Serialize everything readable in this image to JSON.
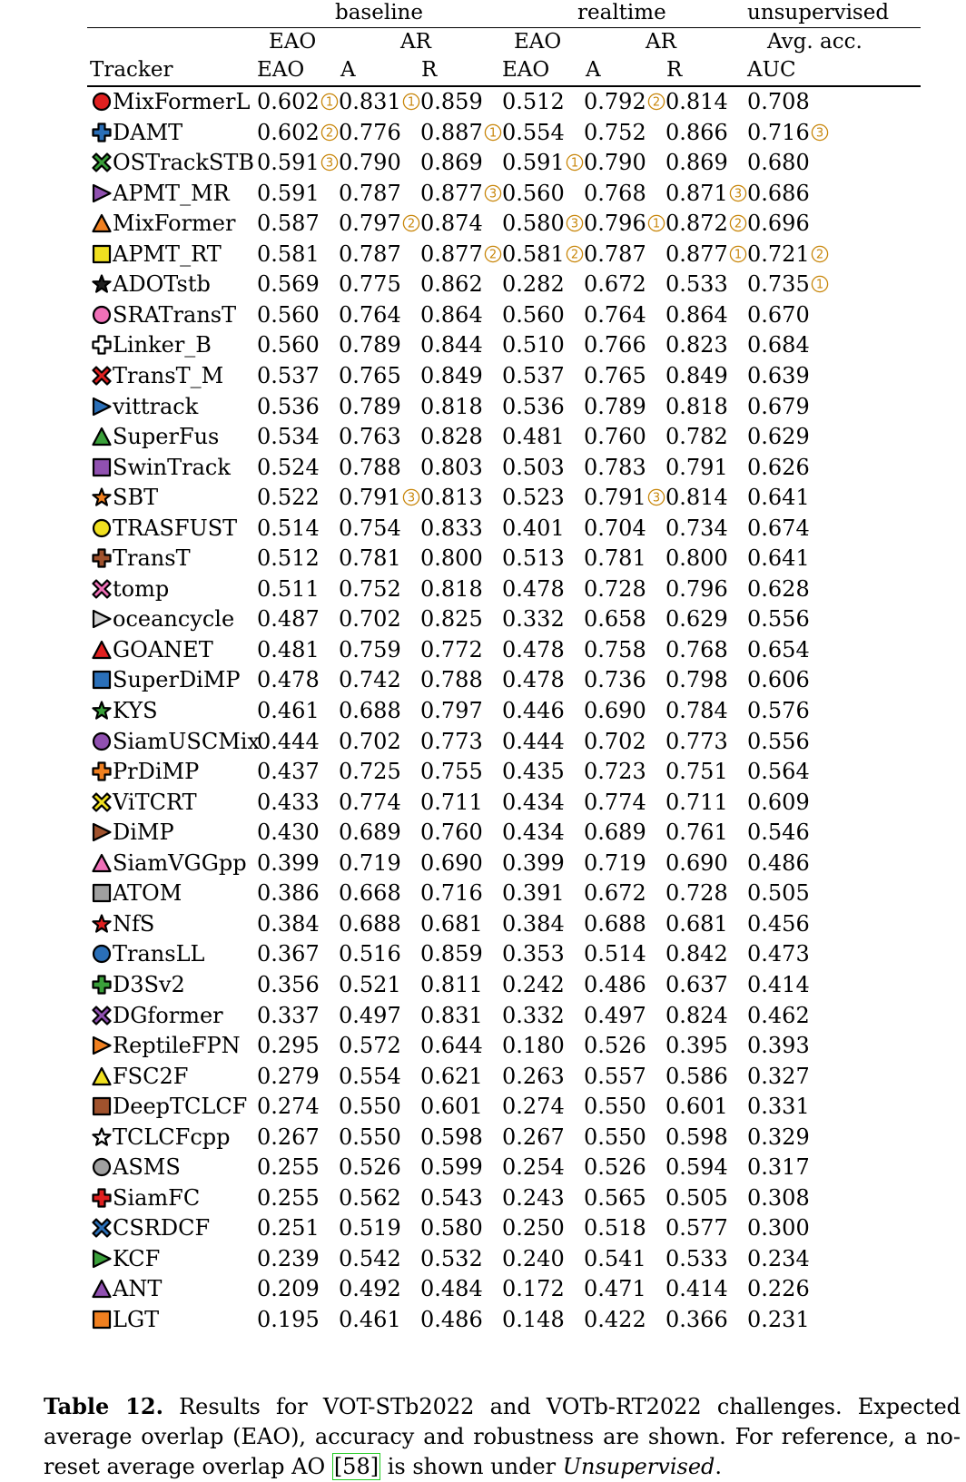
{
  "header": {
    "groups": [
      "baseline",
      "realtime",
      "unsupervised"
    ],
    "sub": [
      "EAO",
      "AR",
      "EAO",
      "AR",
      "Avg. acc."
    ],
    "cols": [
      "Tracker",
      "EAO",
      "A",
      "R",
      "EAO",
      "A",
      "R",
      "AUC"
    ]
  },
  "colors": {
    "rank": "#c8860a",
    "rule": "#000000"
  },
  "rows": [
    {
      "name": "MixFormerL",
      "shape": "circle",
      "color": "#e02020",
      "v": [
        "0.602",
        "0.831",
        "0.859",
        "0.512",
        "0.792",
        "0.814",
        "0.708"
      ],
      "r": [
        "1",
        "1",
        "",
        "",
        "2",
        "",
        ""
      ]
    },
    {
      "name": "DAMT",
      "shape": "plus",
      "color": "#2a6fb8",
      "v": [
        "0.602",
        "0.776",
        "0.887",
        "0.554",
        "0.752",
        "0.866",
        "0.716"
      ],
      "r": [
        "2",
        "",
        "1",
        "",
        "",
        "",
        "3"
      ]
    },
    {
      "name": "OSTrackSTB",
      "shape": "cross",
      "color": "#3aa03a",
      "v": [
        "0.591",
        "0.790",
        "0.869",
        "0.591",
        "0.790",
        "0.869",
        "0.680"
      ],
      "r": [
        "3",
        "",
        "",
        "1",
        "",
        "",
        ""
      ]
    },
    {
      "name": "APMT_MR",
      "shape": "tri-right",
      "color": "#9050b0",
      "v": [
        "0.591",
        "0.787",
        "0.877",
        "0.560",
        "0.768",
        "0.871",
        "0.686"
      ],
      "r": [
        "",
        "",
        "3",
        "",
        "",
        "3",
        ""
      ]
    },
    {
      "name": "MixFormer",
      "shape": "tri-up",
      "color": "#f08020",
      "v": [
        "0.587",
        "0.797",
        "0.874",
        "0.580",
        "0.796",
        "0.872",
        "0.696"
      ],
      "r": [
        "",
        "2",
        "",
        "3",
        "1",
        "2",
        ""
      ]
    },
    {
      "name": "APMT_RT",
      "shape": "square",
      "color": "#f0e020",
      "v": [
        "0.581",
        "0.787",
        "0.877",
        "0.581",
        "0.787",
        "0.877",
        "0.721"
      ],
      "r": [
        "",
        "",
        "2",
        "2",
        "",
        "1",
        "2"
      ]
    },
    {
      "name": "ADOTstb",
      "shape": "star",
      "color": "#202020",
      "v": [
        "0.569",
        "0.775",
        "0.862",
        "0.282",
        "0.672",
        "0.533",
        "0.735"
      ],
      "r": [
        "",
        "",
        "",
        "",
        "",
        "",
        "1"
      ]
    },
    {
      "name": "SRATransT",
      "shape": "circle",
      "color": "#f070b8",
      "v": [
        "0.560",
        "0.764",
        "0.864",
        "0.560",
        "0.764",
        "0.864",
        "0.670"
      ],
      "r": [
        "",
        "",
        "",
        "",
        "",
        "",
        ""
      ]
    },
    {
      "name": "Linker_B",
      "shape": "plus",
      "color": "#ffffff",
      "v": [
        "0.560",
        "0.789",
        "0.844",
        "0.510",
        "0.766",
        "0.823",
        "0.684"
      ],
      "r": [
        "",
        "",
        "",
        "",
        "",
        "",
        ""
      ]
    },
    {
      "name": "TransT_M",
      "shape": "cross",
      "color": "#e02020",
      "v": [
        "0.537",
        "0.765",
        "0.849",
        "0.537",
        "0.765",
        "0.849",
        "0.639"
      ],
      "r": [
        "",
        "",
        "",
        "",
        "",
        "",
        ""
      ]
    },
    {
      "name": "vittrack",
      "shape": "tri-right",
      "color": "#2a6fb8",
      "v": [
        "0.536",
        "0.789",
        "0.818",
        "0.536",
        "0.789",
        "0.818",
        "0.679"
      ],
      "r": [
        "",
        "",
        "",
        "",
        "",
        "",
        ""
      ]
    },
    {
      "name": "SuperFus",
      "shape": "tri-up",
      "color": "#3aa03a",
      "v": [
        "0.534",
        "0.763",
        "0.828",
        "0.481",
        "0.760",
        "0.782",
        "0.629"
      ],
      "r": [
        "",
        "",
        "",
        "",
        "",
        "",
        ""
      ]
    },
    {
      "name": "SwinTrack",
      "shape": "square",
      "color": "#9050b0",
      "v": [
        "0.524",
        "0.788",
        "0.803",
        "0.503",
        "0.783",
        "0.791",
        "0.626"
      ],
      "r": [
        "",
        "",
        "",
        "",
        "",
        "",
        ""
      ]
    },
    {
      "name": "SBT",
      "shape": "star",
      "color": "#f08020",
      "v": [
        "0.522",
        "0.791",
        "0.813",
        "0.523",
        "0.791",
        "0.814",
        "0.641"
      ],
      "r": [
        "",
        "3",
        "",
        "",
        "3",
        "",
        ""
      ]
    },
    {
      "name": "TRASFUST",
      "shape": "circle",
      "color": "#f0e020",
      "v": [
        "0.514",
        "0.754",
        "0.833",
        "0.401",
        "0.704",
        "0.734",
        "0.674"
      ],
      "r": [
        "",
        "",
        "",
        "",
        "",
        "",
        ""
      ]
    },
    {
      "name": "TransT",
      "shape": "plus",
      "color": "#a0522d",
      "v": [
        "0.512",
        "0.781",
        "0.800",
        "0.513",
        "0.781",
        "0.800",
        "0.641"
      ],
      "r": [
        "",
        "",
        "",
        "",
        "",
        "",
        ""
      ]
    },
    {
      "name": "tomp",
      "shape": "cross",
      "color": "#f070b8",
      "v": [
        "0.511",
        "0.752",
        "0.818",
        "0.478",
        "0.728",
        "0.796",
        "0.628"
      ],
      "r": [
        "",
        "",
        "",
        "",
        "",
        "",
        ""
      ]
    },
    {
      "name": "oceancycle",
      "shape": "tri-right",
      "color": "#d0d0d0",
      "v": [
        "0.487",
        "0.702",
        "0.825",
        "0.332",
        "0.658",
        "0.629",
        "0.556"
      ],
      "r": [
        "",
        "",
        "",
        "",
        "",
        "",
        ""
      ]
    },
    {
      "name": "GOANET",
      "shape": "tri-up",
      "color": "#e02020",
      "v": [
        "0.481",
        "0.759",
        "0.772",
        "0.478",
        "0.758",
        "0.768",
        "0.654"
      ],
      "r": [
        "",
        "",
        "",
        "",
        "",
        "",
        ""
      ]
    },
    {
      "name": "SuperDiMP",
      "shape": "square",
      "color": "#2a6fb8",
      "v": [
        "0.478",
        "0.742",
        "0.788",
        "0.478",
        "0.736",
        "0.798",
        "0.606"
      ],
      "r": [
        "",
        "",
        "",
        "",
        "",
        "",
        ""
      ]
    },
    {
      "name": "KYS",
      "shape": "star",
      "color": "#3aa03a",
      "v": [
        "0.461",
        "0.688",
        "0.797",
        "0.446",
        "0.690",
        "0.784",
        "0.576"
      ],
      "r": [
        "",
        "",
        "",
        "",
        "",
        "",
        ""
      ]
    },
    {
      "name": "SiamUSCMix",
      "shape": "circle",
      "color": "#9050b0",
      "v": [
        "0.444",
        "0.702",
        "0.773",
        "0.444",
        "0.702",
        "0.773",
        "0.556"
      ],
      "r": [
        "",
        "",
        "",
        "",
        "",
        "",
        ""
      ]
    },
    {
      "name": "PrDiMP",
      "shape": "plus",
      "color": "#f08020",
      "v": [
        "0.437",
        "0.725",
        "0.755",
        "0.435",
        "0.723",
        "0.751",
        "0.564"
      ],
      "r": [
        "",
        "",
        "",
        "",
        "",
        "",
        ""
      ]
    },
    {
      "name": "ViTCRT",
      "shape": "cross",
      "color": "#f0e020",
      "v": [
        "0.433",
        "0.774",
        "0.711",
        "0.434",
        "0.774",
        "0.711",
        "0.609"
      ],
      "r": [
        "",
        "",
        "",
        "",
        "",
        "",
        ""
      ]
    },
    {
      "name": "DiMP",
      "shape": "tri-right",
      "color": "#a0522d",
      "v": [
        "0.430",
        "0.689",
        "0.760",
        "0.434",
        "0.689",
        "0.761",
        "0.546"
      ],
      "r": [
        "",
        "",
        "",
        "",
        "",
        "",
        ""
      ]
    },
    {
      "name": "SiamVGGpp",
      "shape": "tri-up",
      "color": "#f070b8",
      "v": [
        "0.399",
        "0.719",
        "0.690",
        "0.399",
        "0.719",
        "0.690",
        "0.486"
      ],
      "r": [
        "",
        "",
        "",
        "",
        "",
        "",
        ""
      ]
    },
    {
      "name": "ATOM",
      "shape": "square",
      "color": "#a0a0a0",
      "v": [
        "0.386",
        "0.668",
        "0.716",
        "0.391",
        "0.672",
        "0.728",
        "0.505"
      ],
      "r": [
        "",
        "",
        "",
        "",
        "",
        "",
        ""
      ]
    },
    {
      "name": "NfS",
      "shape": "star",
      "color": "#e02020",
      "v": [
        "0.384",
        "0.688",
        "0.681",
        "0.384",
        "0.688",
        "0.681",
        "0.456"
      ],
      "r": [
        "",
        "",
        "",
        "",
        "",
        "",
        ""
      ]
    },
    {
      "name": "TransLL",
      "shape": "circle",
      "color": "#2a6fb8",
      "v": [
        "0.367",
        "0.516",
        "0.859",
        "0.353",
        "0.514",
        "0.842",
        "0.473"
      ],
      "r": [
        "",
        "",
        "",
        "",
        "",
        "",
        ""
      ]
    },
    {
      "name": "D3Sv2",
      "shape": "plus",
      "color": "#3aa03a",
      "v": [
        "0.356",
        "0.521",
        "0.811",
        "0.242",
        "0.486",
        "0.637",
        "0.414"
      ],
      "r": [
        "",
        "",
        "",
        "",
        "",
        "",
        ""
      ]
    },
    {
      "name": "DGformer",
      "shape": "cross",
      "color": "#9050b0",
      "v": [
        "0.337",
        "0.497",
        "0.831",
        "0.332",
        "0.497",
        "0.824",
        "0.462"
      ],
      "r": [
        "",
        "",
        "",
        "",
        "",
        "",
        ""
      ]
    },
    {
      "name": "ReptileFPN",
      "shape": "tri-right",
      "color": "#f08020",
      "v": [
        "0.295",
        "0.572",
        "0.644",
        "0.180",
        "0.526",
        "0.395",
        "0.393"
      ],
      "r": [
        "",
        "",
        "",
        "",
        "",
        "",
        ""
      ]
    },
    {
      "name": "FSC2F",
      "shape": "tri-up",
      "color": "#f0e020",
      "v": [
        "0.279",
        "0.554",
        "0.621",
        "0.263",
        "0.557",
        "0.586",
        "0.327"
      ],
      "r": [
        "",
        "",
        "",
        "",
        "",
        "",
        ""
      ]
    },
    {
      "name": "DeepTCLCF",
      "shape": "square",
      "color": "#a0522d",
      "v": [
        "0.274",
        "0.550",
        "0.601",
        "0.274",
        "0.550",
        "0.601",
        "0.331"
      ],
      "r": [
        "",
        "",
        "",
        "",
        "",
        "",
        ""
      ]
    },
    {
      "name": "TCLCFcpp",
      "shape": "star",
      "color": "#ffffff",
      "v": [
        "0.267",
        "0.550",
        "0.598",
        "0.267",
        "0.550",
        "0.598",
        "0.329"
      ],
      "r": [
        "",
        "",
        "",
        "",
        "",
        "",
        ""
      ]
    },
    {
      "name": "ASMS",
      "shape": "circle",
      "color": "#a0a0a0",
      "v": [
        "0.255",
        "0.526",
        "0.599",
        "0.254",
        "0.526",
        "0.594",
        "0.317"
      ],
      "r": [
        "",
        "",
        "",
        "",
        "",
        "",
        ""
      ]
    },
    {
      "name": "SiamFC",
      "shape": "plus",
      "color": "#e02020",
      "v": [
        "0.255",
        "0.562",
        "0.543",
        "0.243",
        "0.565",
        "0.505",
        "0.308"
      ],
      "r": [
        "",
        "",
        "",
        "",
        "",
        "",
        ""
      ]
    },
    {
      "name": "CSRDCF",
      "shape": "cross",
      "color": "#2a6fb8",
      "v": [
        "0.251",
        "0.519",
        "0.580",
        "0.250",
        "0.518",
        "0.577",
        "0.300"
      ],
      "r": [
        "",
        "",
        "",
        "",
        "",
        "",
        ""
      ]
    },
    {
      "name": "KCF",
      "shape": "tri-right",
      "color": "#3aa03a",
      "v": [
        "0.239",
        "0.542",
        "0.532",
        "0.240",
        "0.541",
        "0.533",
        "0.234"
      ],
      "r": [
        "",
        "",
        "",
        "",
        "",
        "",
        ""
      ]
    },
    {
      "name": "ANT",
      "shape": "tri-up",
      "color": "#9050b0",
      "v": [
        "0.209",
        "0.492",
        "0.484",
        "0.172",
        "0.471",
        "0.414",
        "0.226"
      ],
      "r": [
        "",
        "",
        "",
        "",
        "",
        "",
        ""
      ]
    },
    {
      "name": "LGT",
      "shape": "square",
      "color": "#f08020",
      "v": [
        "0.195",
        "0.461",
        "0.486",
        "0.148",
        "0.422",
        "0.366",
        "0.231"
      ],
      "r": [
        "",
        "",
        "",
        "",
        "",
        "",
        ""
      ]
    }
  ],
  "caption": {
    "label": "Table 12.",
    "text1": " Results for VOT-STb2022 and VOTb-RT2022 challenges. Expected average overlap (EAO), accuracy and robustness are shown. For reference, a no-reset average overlap AO ",
    "ref": "[58]",
    "text2": " is shown under ",
    "italic": "Unsupervised",
    "text3": "."
  }
}
